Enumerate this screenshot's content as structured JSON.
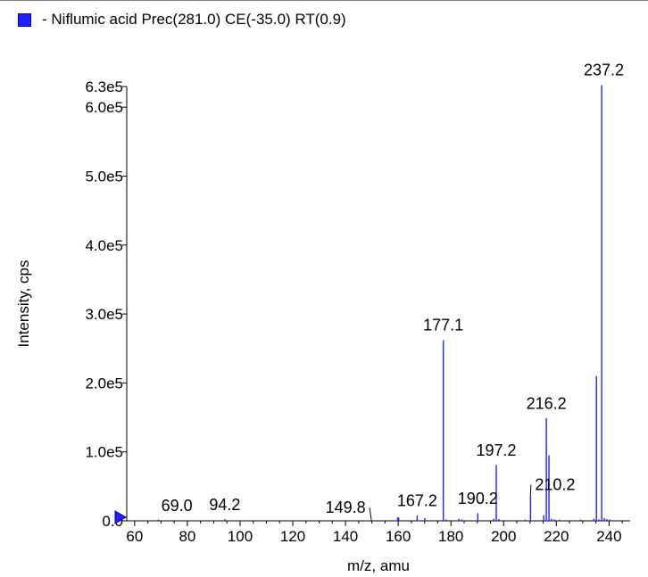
{
  "legend": {
    "color": "#2020ff",
    "text": "- Niflumic acid Prec(281.0) CE(-35.0) RT(0.9)"
  },
  "chart_data": {
    "type": "bar",
    "title": "",
    "xlabel": "m/z, amu",
    "ylabel": "Intensity, cps",
    "xlim": [
      57,
      248
    ],
    "ylim": [
      0,
      630000
    ],
    "x_ticks": [
      60,
      80,
      100,
      120,
      140,
      160,
      180,
      200,
      220,
      240
    ],
    "y_ticks": [
      {
        "value": 0,
        "label": "0.0"
      },
      {
        "value": 100000,
        "label": "1.0e5"
      },
      {
        "value": 200000,
        "label": "2.0e5"
      },
      {
        "value": 300000,
        "label": "3.0e5"
      },
      {
        "value": 400000,
        "label": "4.0e5"
      },
      {
        "value": 500000,
        "label": "5.0e5"
      },
      {
        "value": 600000,
        "label": "6.0e5"
      },
      {
        "value": 630000,
        "label": "6.3e5"
      }
    ],
    "color": "#2020ff",
    "series": [
      {
        "x": [
          69.0,
          94.2,
          149.8,
          159.8,
          160.2,
          167.2,
          170.1,
          177.1,
          178.2,
          183.0,
          184.1,
          190.2,
          196.2,
          197.2,
          198.2,
          208.2,
          210.2,
          215.2,
          216.2,
          217.2,
          218.2,
          219.3,
          221.2,
          229.2,
          234.2,
          235.2,
          236.2,
          237.2,
          238.2,
          239.2,
          240.3
        ],
        "values": [
          2000,
          2500,
          1500,
          5000,
          4500,
          8000,
          4000,
          262000,
          2000,
          3000,
          2000,
          11000,
          3000,
          81000,
          2500,
          2000,
          38000,
          8000,
          149000,
          95000,
          3000,
          2000,
          2000,
          2000,
          3000,
          210000,
          2000,
          632000,
          4000,
          2500,
          2000
        ]
      }
    ],
    "peak_labels": [
      {
        "x": 69.0,
        "text": "69.0",
        "label_x": 76,
        "label_y": 8000
      },
      {
        "x": 94.2,
        "text": "94.2",
        "label_x": 94.2,
        "label_y": 9000
      },
      {
        "x": 149.8,
        "text": "149.8",
        "label_x": 140,
        "label_y": 5000,
        "leader": true,
        "leader_to_y": 1500
      },
      {
        "x": 167.2,
        "text": "167.2",
        "label_x": 167.2,
        "label_y": 15000
      },
      {
        "x": 177.1,
        "text": "177.1",
        "label_x": 177.1,
        "label_y": 270000
      },
      {
        "x": 190.2,
        "text": "190.2",
        "label_x": 190.2,
        "label_y": 18000
      },
      {
        "x": 197.2,
        "text": "197.2",
        "label_x": 197.2,
        "label_y": 88000
      },
      {
        "x": 210.2,
        "text": "210.2",
        "label_x": 219.5,
        "label_y": 38000,
        "leader": true,
        "leader_to_y": 38000
      },
      {
        "x": 216.2,
        "text": "216.2",
        "label_x": 216.2,
        "label_y": 156000
      },
      {
        "x": 237.2,
        "text": "237.2",
        "label_x": 238,
        "label_y": 640000
      }
    ]
  }
}
